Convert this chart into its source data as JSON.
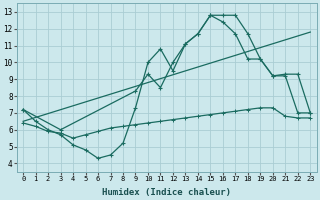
{
  "xlabel": "Humidex (Indice chaleur)",
  "xlim": [
    -0.5,
    23.5
  ],
  "ylim": [
    3.5,
    13.5
  ],
  "xticks": [
    0,
    1,
    2,
    3,
    4,
    5,
    6,
    7,
    8,
    9,
    10,
    11,
    12,
    13,
    14,
    15,
    16,
    17,
    18,
    19,
    20,
    21,
    22,
    23
  ],
  "yticks": [
    4,
    5,
    6,
    7,
    8,
    9,
    10,
    11,
    12,
    13
  ],
  "bg_color": "#cce8ec",
  "line_color": "#1a6b60",
  "grid_color": "#aacdd4",
  "line1_x": [
    0,
    1,
    2,
    3,
    4,
    5,
    6,
    7,
    8,
    9,
    10,
    11,
    12,
    13,
    14,
    15,
    16,
    17,
    18,
    19,
    20,
    21,
    22,
    23
  ],
  "line1_y": [
    7.2,
    6.5,
    6.0,
    5.7,
    5.1,
    4.8,
    4.3,
    4.5,
    5.2,
    7.3,
    10.0,
    10.8,
    9.5,
    11.1,
    11.7,
    12.8,
    12.8,
    12.8,
    11.7,
    10.2,
    9.2,
    9.2,
    7.0,
    7.0
  ],
  "line2_x": [
    0,
    3,
    9,
    10,
    11,
    12,
    13,
    14,
    15,
    16,
    17,
    18,
    19,
    20,
    21,
    22,
    23
  ],
  "line2_y": [
    7.2,
    6.0,
    8.3,
    9.3,
    8.5,
    10.0,
    11.1,
    11.7,
    12.8,
    12.4,
    11.7,
    10.2,
    10.2,
    9.2,
    9.3,
    9.3,
    7.0
  ],
  "line3_x": [
    0,
    23
  ],
  "line3_y": [
    6.5,
    11.8
  ],
  "line4_x": [
    0,
    1,
    2,
    3,
    4,
    5,
    6,
    7,
    8,
    9,
    10,
    11,
    12,
    13,
    14,
    15,
    16,
    17,
    18,
    19,
    20,
    21,
    22,
    23
  ],
  "line4_y": [
    6.4,
    6.2,
    5.9,
    5.8,
    5.5,
    5.7,
    5.9,
    6.1,
    6.2,
    6.3,
    6.4,
    6.5,
    6.6,
    6.7,
    6.8,
    6.9,
    7.0,
    7.1,
    7.2,
    7.3,
    7.3,
    6.8,
    6.7,
    6.7
  ]
}
